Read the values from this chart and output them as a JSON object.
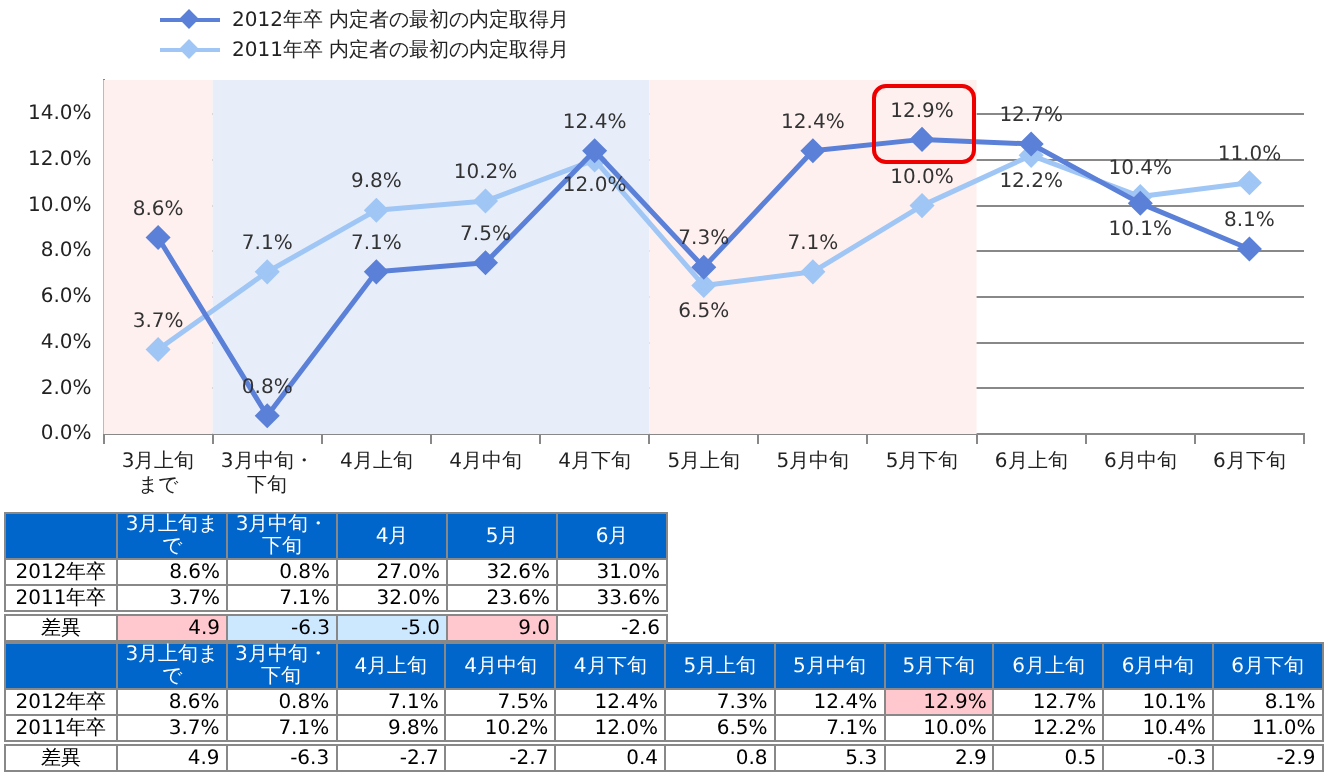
{
  "chart_data": [
    {
      "type": "line",
      "legend": "top",
      "grid": "y",
      "marker": "diamond",
      "data_labels": true,
      "categories": [
        "3月上旬まで",
        "3月中旬・下旬",
        "4月上旬",
        "4月中旬",
        "4月下旬",
        "5月上旬",
        "5月中旬",
        "5月下旬",
        "6月上旬",
        "6月中旬",
        "6月下旬"
      ],
      "ylim": [
        0,
        15.5
      ],
      "yticks": [
        {
          "value": 0,
          "label": "0.0%"
        },
        {
          "value": 2,
          "label": "2.0%"
        },
        {
          "value": 4,
          "label": "4.0%"
        },
        {
          "value": 6,
          "label": "6.0%"
        },
        {
          "value": 8,
          "label": "8.0%"
        },
        {
          "value": 10,
          "label": "10.0%"
        },
        {
          "value": 12,
          "label": "12.0%"
        },
        {
          "value": 14,
          "label": "14.0%"
        }
      ],
      "bands": [
        {
          "axis": "x",
          "from": "3月上旬まで",
          "to": "3月上旬まで",
          "color": "#fff0f0"
        },
        {
          "axis": "x",
          "from": "3月中旬・下旬",
          "to": "4月下旬",
          "color": "#e7eefa"
        },
        {
          "axis": "x",
          "from": "5月上旬",
          "to": "5月下旬",
          "color": "#fff0f0"
        }
      ],
      "series": [
        {
          "name": "2012年卒 内定者の最初の内定取得月",
          "color": "#5b80d8",
          "values": [
            8.6,
            0.8,
            7.1,
            7.5,
            12.4,
            7.3,
            12.4,
            12.9,
            12.7,
            10.1,
            8.1
          ],
          "value_labels": [
            "8.6%",
            "0.8%",
            "7.1%",
            "7.5%",
            "12.4%",
            "7.3%",
            "12.4%",
            "12.9%",
            "12.7%",
            "10.1%",
            "8.1%"
          ]
        },
        {
          "name": "2011年卒 内定者の最初の内定取得月",
          "color": "#9fc6f5",
          "values": [
            3.7,
            7.1,
            9.8,
            10.2,
            12.0,
            6.5,
            7.1,
            10.0,
            12.2,
            10.4,
            11.0
          ],
          "value_labels": [
            "3.7%",
            "7.1%",
            "9.8%",
            "10.2%",
            "12.0%",
            "6.5%",
            "7.1%",
            "10.0%",
            "12.2%",
            "10.4%",
            "11.0%"
          ]
        }
      ]
    },
    {
      "type": "other",
      "categories": [
        "3月上旬まで",
        "3月中旬・下旬",
        "4月",
        "5月",
        "6月"
      ],
      "series": [
        {
          "name": "2012年卒",
          "values": [
            8.6,
            0.8,
            27.0,
            32.6,
            31.0
          ],
          "value_labels": [
            "8.6%",
            "0.8%",
            "27.0%",
            "32.6%",
            "31.0%"
          ]
        },
        {
          "name": "2011年卒",
          "values": [
            3.7,
            7.1,
            32.0,
            23.6,
            33.6
          ],
          "value_labels": [
            "3.7%",
            "7.1%",
            "32.0%",
            "23.6%",
            "33.6%"
          ]
        },
        {
          "name": "差異",
          "values": [
            4.9,
            -6.3,
            -5.0,
            9.0,
            -2.6
          ],
          "value_labels": [
            "4.9",
            "-6.3",
            "-5.0",
            "9.0",
            "-2.6"
          ],
          "colors": [
            "#ffc7ce",
            "#cce8ff",
            "#cce8ff",
            "#ffc7ce",
            "#ffffff"
          ]
        }
      ]
    },
    {
      "type": "other",
      "categories": [
        "3月上旬まで",
        "3月中旬・下旬",
        "4月上旬",
        "4月中旬",
        "4月下旬",
        "5月上旬",
        "5月中旬",
        "5月下旬",
        "6月上旬",
        "6月中旬",
        "6月下旬"
      ],
      "series": [
        {
          "name": "2012年卒",
          "values": [
            8.6,
            0.8,
            7.1,
            7.5,
            12.4,
            7.3,
            12.4,
            12.9,
            12.7,
            10.1,
            8.1
          ],
          "value_labels": [
            "8.6%",
            "0.8%",
            "7.1%",
            "7.5%",
            "12.4%",
            "7.3%",
            "12.4%",
            "12.9%",
            "12.7%",
            "10.1%",
            "8.1%"
          ],
          "colors": [
            "#ffffff",
            "#ffffff",
            "#ffffff",
            "#ffffff",
            "#ffffff",
            "#ffffff",
            "#ffffff",
            "#ffc7ce",
            "#ffffff",
            "#ffffff",
            "#ffffff"
          ]
        },
        {
          "name": "2011年卒",
          "values": [
            3.7,
            7.1,
            9.8,
            10.2,
            12.0,
            6.5,
            7.1,
            10.0,
            12.2,
            10.4,
            11.0
          ],
          "value_labels": [
            "3.7%",
            "7.1%",
            "9.8%",
            "10.2%",
            "12.0%",
            "6.5%",
            "7.1%",
            "10.0%",
            "12.2%",
            "10.4%",
            "11.0%"
          ]
        },
        {
          "name": "差異",
          "values": [
            4.9,
            -6.3,
            -2.7,
            -2.7,
            0.4,
            0.8,
            5.3,
            2.9,
            0.5,
            -0.3,
            -2.9
          ],
          "value_labels": [
            "4.9",
            "-6.3",
            "-2.7",
            "-2.7",
            "0.4",
            "0.8",
            "5.3",
            "2.9",
            "0.5",
            "-0.3",
            "-2.9"
          ]
        }
      ]
    }
  ]
}
